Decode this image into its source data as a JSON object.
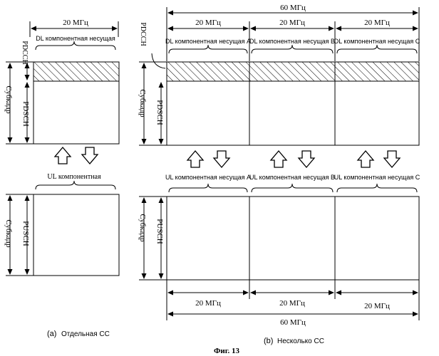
{
  "single": {
    "bandwidth_top": "20 МГц",
    "dl_carrier": "DL компонентная несущая",
    "ul_carrier": "UL компонентная",
    "pdcch": "PDCCH",
    "pdsch": "PDSCH",
    "pusch": "PUSCH",
    "subframe_top": "Субкадр",
    "subframe_bottom": "Субкадр",
    "caption_letter": "(a)",
    "caption": "Отдельная CC"
  },
  "multi": {
    "total_top": "60 МГц",
    "bw_top": [
      "20 МГц",
      "20 МГц",
      "20 МГц"
    ],
    "dl_carriers": [
      "DL компонентная несущая А",
      "DL компонентная несущая В",
      "DL компонентная несущая С"
    ],
    "ul_carriers": [
      "UL компонентная несущая А",
      "UL компонентная несущая В",
      "UL компонентная несущая С"
    ],
    "pdcch": "PDCCH",
    "pdsch": "PDSCH",
    "pusch": "PUSCH",
    "subframe_top": "Субкадр",
    "subframe_bottom": "Субкадр",
    "bw_bottom": [
      "20 МГц",
      "20 МГц",
      "20 МГц"
    ],
    "total_bottom": "60 МГц",
    "caption_letter": "(b)",
    "caption": "Несколько CC"
  },
  "figure_caption": "Фиг. 13"
}
